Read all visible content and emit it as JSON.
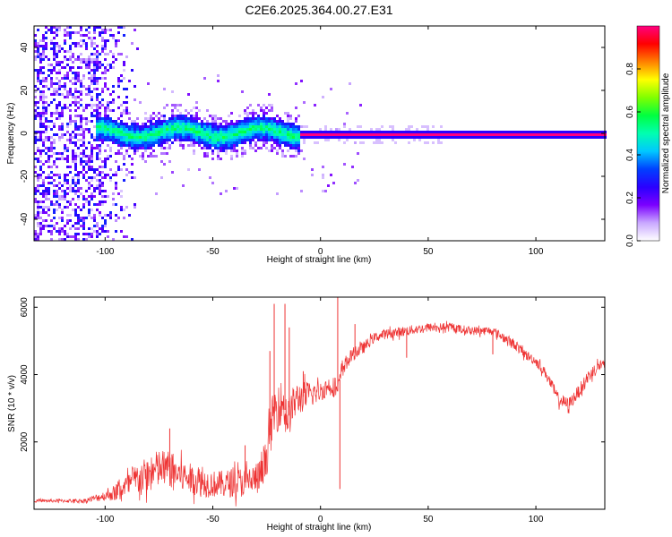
{
  "figure": {
    "title": "C2E6.2025.364.00.27.E31"
  },
  "chart_data": [
    {
      "type": "heatmap",
      "xlabel": "Height of straight line (km)",
      "ylabel": "Frequency (Hz)",
      "xlim": [
        -133,
        132
      ],
      "ylim": [
        -50,
        50
      ],
      "xticks": [
        -100,
        -50,
        0,
        50,
        100
      ],
      "yticks": [
        -40,
        -20,
        0,
        20,
        40
      ],
      "grid": false,
      "colorbar": {
        "label": "Normalized spectral amplitude",
        "range": [
          0,
          1
        ],
        "ticks": [
          0.0,
          0.2,
          0.4,
          0.6,
          0.8
        ],
        "colors": [
          "#ffffff",
          "#c9a8ff",
          "#7b00ff",
          "#2a00ff",
          "#0040ff",
          "#00c8ff",
          "#00ffb0",
          "#00ff40",
          "#80ff00",
          "#ffff00",
          "#ff8000",
          "#ff0000",
          "#ff0080"
        ]
      },
      "features": [
        {
          "name": "noise",
          "x_range": [
            -133,
            -85
          ],
          "f_range": [
            -50,
            50
          ],
          "level": 0.15
        },
        {
          "name": "band",
          "x_range": [
            -105,
            -10
          ],
          "f_center": 1,
          "f_halfwidth": 5,
          "level": 0.45
        },
        {
          "name": "tone",
          "x_range": [
            -10,
            132
          ],
          "f_center": 0,
          "f_halfwidth": 1,
          "level": 1.0
        }
      ]
    },
    {
      "type": "line",
      "xlabel": "Height of straight line (km)",
      "ylabel": "SNR (10 * v/v)",
      "xlim": [
        -133,
        132
      ],
      "ylim": [
        0,
        6300
      ],
      "xticks": [
        -100,
        -50,
        0,
        50,
        100
      ],
      "yticks": [
        2000,
        4000,
        6000
      ],
      "color": "#ee3333",
      "x": [
        -133,
        -110,
        -100,
        -95,
        -90,
        -85,
        -80,
        -75,
        -70,
        -65,
        -60,
        -55,
        -50,
        -45,
        -40,
        -35,
        -30,
        -27,
        -25,
        -22,
        -20,
        -18,
        -15,
        -12,
        -10,
        -5,
        0,
        5,
        8,
        10,
        15,
        20,
        25,
        30,
        40,
        50,
        60,
        70,
        80,
        85,
        90,
        95,
        100,
        105,
        110,
        115,
        120,
        125,
        130,
        132
      ],
      "y": [
        250,
        250,
        400,
        500,
        700,
        900,
        1000,
        1200,
        1200,
        1000,
        900,
        800,
        750,
        750,
        800,
        800,
        900,
        1000,
        1600,
        2800,
        3000,
        3200,
        2700,
        3200,
        3300,
        3400,
        3500,
        3700,
        3500,
        4200,
        4600,
        4800,
        5100,
        5200,
        5300,
        5400,
        5400,
        5300,
        5300,
        5100,
        4900,
        4600,
        4400,
        4000,
        3300,
        3100,
        3500,
        4000,
        4300,
        4200
      ],
      "spread": [
        40,
        60,
        150,
        250,
        350,
        500,
        550,
        600,
        550,
        500,
        450,
        450,
        400,
        400,
        450,
        450,
        500,
        550,
        600,
        700,
        700,
        650,
        600,
        550,
        500,
        400,
        300,
        300,
        300,
        250,
        200,
        180,
        150,
        150,
        150,
        130,
        130,
        130,
        130,
        150,
        150,
        150,
        150,
        150,
        200,
        200,
        200,
        200,
        200,
        200
      ],
      "spikes": [
        {
          "x": -70,
          "y": 2400
        },
        {
          "x": -35,
          "y": 1900
        },
        {
          "x": -23.5,
          "y": 4700
        },
        {
          "x": -21.5,
          "y": 6100
        },
        {
          "x": -16.5,
          "y": 6100
        },
        {
          "x": -14.5,
          "y": 5400
        },
        {
          "x": -8,
          "y": 4100
        },
        {
          "x": 8,
          "y": 6300
        },
        {
          "x": 9,
          "y": 600
        },
        {
          "x": 16,
          "y": 5500
        },
        {
          "x": 40,
          "y": 4500
        },
        {
          "x": 80,
          "y": 4600
        }
      ]
    }
  ]
}
